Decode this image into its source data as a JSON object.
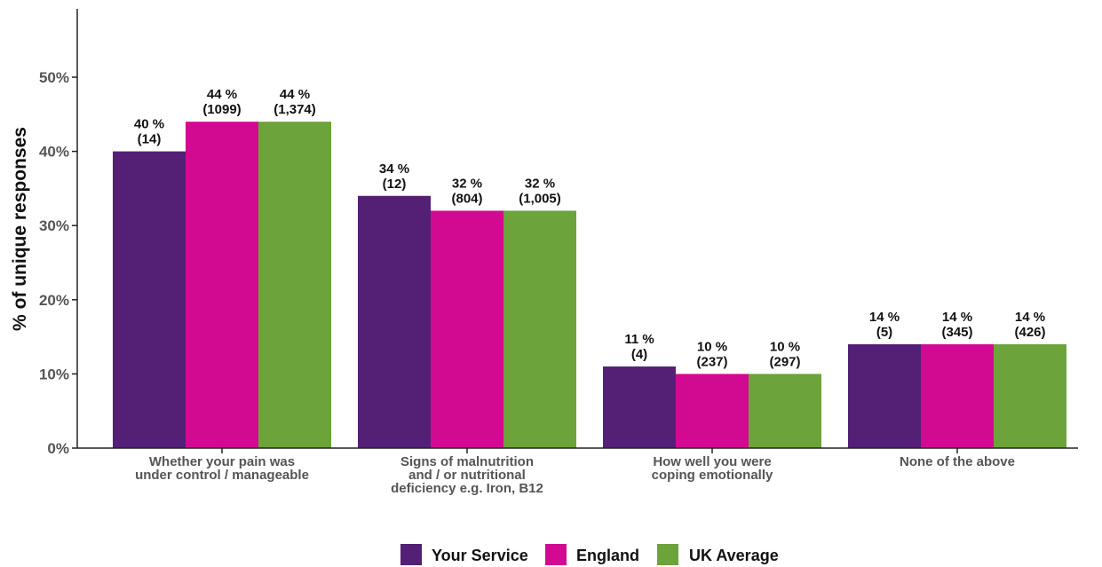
{
  "chart_data": {
    "type": "bar",
    "ylabel": "% of unique responses",
    "xlabel": "",
    "ylim": [
      0,
      60
    ],
    "yticks": [
      0,
      10,
      20,
      30,
      40,
      50
    ],
    "ytick_labels": [
      "0%",
      "10%",
      "20%",
      "30%",
      "40%",
      "50%"
    ],
    "categories": [
      [
        "Whether your pain was",
        "under control / manageable"
      ],
      [
        "Signs of malnutrition",
        "and / or nutritional",
        "deficiency e.g. Iron, B12"
      ],
      [
        "How well you were",
        "coping emotionally"
      ],
      [
        "None of the above"
      ]
    ],
    "series": [
      {
        "name": "Your Service",
        "color": "#532075",
        "values": [
          40,
          34,
          11,
          14
        ],
        "labels": [
          [
            "40 %",
            "(14)"
          ],
          [
            "34 %",
            "(12)"
          ],
          [
            "11 %",
            "(4)"
          ],
          [
            "14 %",
            "(5)"
          ]
        ]
      },
      {
        "name": "England",
        "color": "#D20A91",
        "values": [
          44,
          32,
          10,
          14
        ],
        "labels": [
          [
            "44 %",
            "(1099)"
          ],
          [
            "32 %",
            "(804)"
          ],
          [
            "10 %",
            "(237)"
          ],
          [
            "14 %",
            "(345)"
          ]
        ]
      },
      {
        "name": "UK Average",
        "color": "#6CA33A",
        "values": [
          44,
          32,
          10,
          14
        ],
        "labels": [
          [
            "44 %",
            "(1,374)"
          ],
          [
            "32 %",
            "(1,005)"
          ],
          [
            "10 %",
            "(297)"
          ],
          [
            "14 %",
            "(426)"
          ]
        ]
      }
    ],
    "legend_position": "bottom-center",
    "grid": false
  }
}
